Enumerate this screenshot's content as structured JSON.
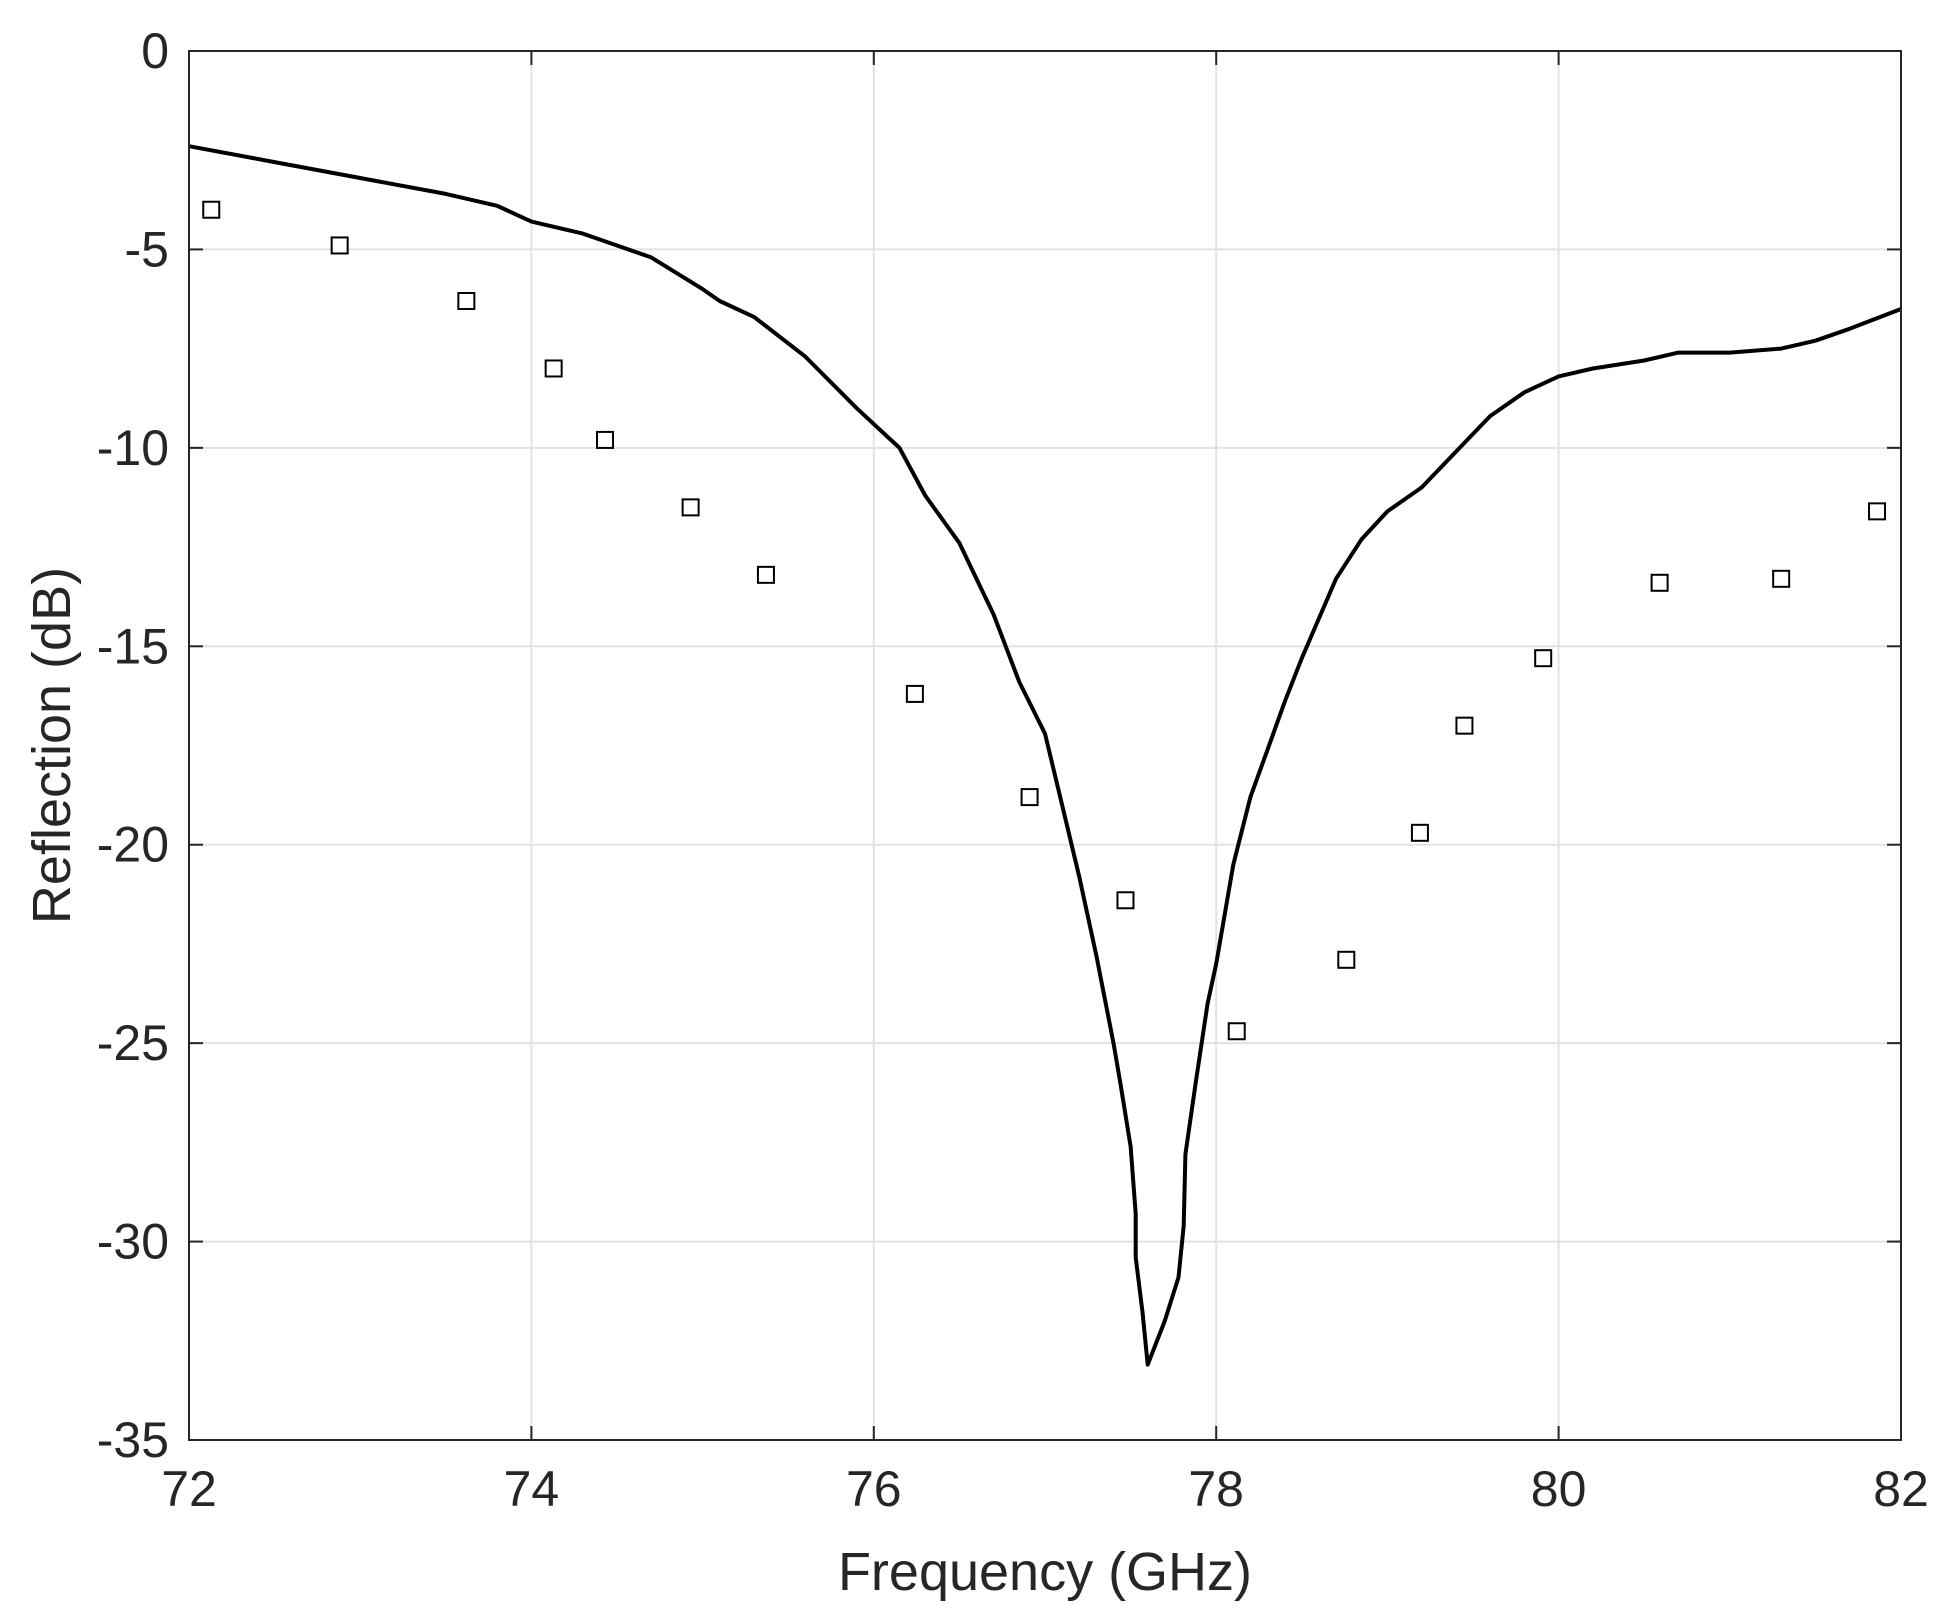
{
  "chart_data": {
    "type": "line",
    "xlabel": "Frequency (GHz)",
    "ylabel": "Reflection (dB)",
    "xlim": [
      72,
      82
    ],
    "ylim": [
      -35,
      0
    ],
    "x_ticks": [
      72,
      74,
      76,
      78,
      80,
      82
    ],
    "y_ticks": [
      0,
      -5,
      -10,
      -15,
      -20,
      -25,
      -30,
      -35
    ],
    "x_tick_labels": [
      "72",
      "74",
      "76",
      "78",
      "80",
      "82"
    ],
    "y_tick_labels": [
      "0",
      "-5",
      "-10",
      "-15",
      "-20",
      "-25",
      "-30",
      "-35"
    ],
    "grid": true,
    "legend": "none",
    "series": [
      {
        "style": "solid-line",
        "color": "#000000",
        "points": [
          [
            72.0,
            -2.4
          ],
          [
            72.5,
            -2.8
          ],
          [
            73.0,
            -3.2
          ],
          [
            73.5,
            -3.6
          ],
          [
            73.8,
            -3.9
          ],
          [
            74.0,
            -4.3
          ],
          [
            74.3,
            -4.6
          ],
          [
            74.5,
            -4.9
          ],
          [
            74.7,
            -5.2
          ],
          [
            75.0,
            -6.0
          ],
          [
            75.1,
            -6.3
          ],
          [
            75.3,
            -6.7
          ],
          [
            75.6,
            -7.7
          ],
          [
            75.9,
            -9.0
          ],
          [
            76.15,
            -10.0
          ],
          [
            76.3,
            -11.2
          ],
          [
            76.5,
            -12.4
          ],
          [
            76.7,
            -14.2
          ],
          [
            76.85,
            -15.9
          ],
          [
            77.0,
            -17.2
          ],
          [
            77.1,
            -19.0
          ],
          [
            77.2,
            -20.8
          ],
          [
            77.3,
            -22.8
          ],
          [
            77.4,
            -25.0
          ],
          [
            77.44,
            -26.0
          ],
          [
            77.5,
            -27.6
          ],
          [
            77.53,
            -29.3
          ],
          [
            77.53,
            -30.4
          ],
          [
            77.57,
            -31.8
          ],
          [
            77.6,
            -33.1
          ],
          [
            77.7,
            -32.0
          ],
          [
            77.78,
            -30.9
          ],
          [
            77.81,
            -29.6
          ],
          [
            77.82,
            -27.8
          ],
          [
            77.88,
            -26.0
          ],
          [
            77.95,
            -24.0
          ],
          [
            78.0,
            -23.0
          ],
          [
            78.1,
            -20.5
          ],
          [
            78.2,
            -18.8
          ],
          [
            78.3,
            -17.6
          ],
          [
            78.4,
            -16.4
          ],
          [
            78.5,
            -15.3
          ],
          [
            78.6,
            -14.3
          ],
          [
            78.7,
            -13.3
          ],
          [
            78.85,
            -12.3
          ],
          [
            79.0,
            -11.6
          ],
          [
            79.2,
            -11.0
          ],
          [
            79.4,
            -10.1
          ],
          [
            79.6,
            -9.2
          ],
          [
            79.8,
            -8.6
          ],
          [
            80.0,
            -8.2
          ],
          [
            80.2,
            -8.0
          ],
          [
            80.5,
            -7.8
          ],
          [
            80.7,
            -7.6
          ],
          [
            81.0,
            -7.6
          ],
          [
            81.3,
            -7.5
          ],
          [
            81.5,
            -7.3
          ],
          [
            81.7,
            -7.0
          ],
          [
            82.0,
            -6.5
          ]
        ]
      },
      {
        "style": "square-markers",
        "color": "#000000",
        "points": [
          [
            72.13,
            -4.0
          ],
          [
            72.88,
            -4.9
          ],
          [
            73.62,
            -6.3
          ],
          [
            74.13,
            -8.0
          ],
          [
            74.43,
            -9.8
          ],
          [
            74.93,
            -11.5
          ],
          [
            75.37,
            -13.2
          ],
          [
            76.24,
            -16.2
          ],
          [
            76.91,
            -18.8
          ],
          [
            77.47,
            -21.4
          ],
          [
            78.12,
            -24.7
          ],
          [
            78.76,
            -22.9
          ],
          [
            79.19,
            -19.7
          ],
          [
            79.45,
            -17.0
          ],
          [
            79.91,
            -15.3
          ],
          [
            80.59,
            -13.4
          ],
          [
            81.3,
            -13.3
          ],
          [
            81.86,
            -11.6
          ]
        ]
      }
    ]
  }
}
